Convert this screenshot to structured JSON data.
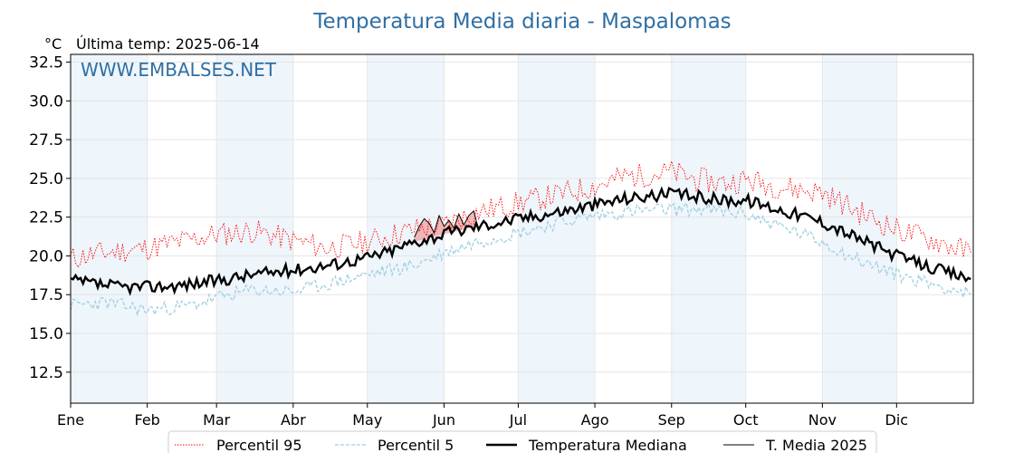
{
  "title": "Temperatura Media diaria - Maspalomas",
  "unit_label": "°C",
  "last_temp_label": "Última temp: 2025-06-14",
  "watermark": "WWW.EMBALSES.NET",
  "colors": {
    "title": "#2f6fa3",
    "p95": "#ff0000",
    "p5": "#9fd0e0",
    "median": "#000000",
    "current": "#000000",
    "fill_above": "#f08080",
    "band": "#eef5fb"
  },
  "chart_data": {
    "type": "line",
    "xlabel": "",
    "ylabel": "°C",
    "ylim": [
      10.5,
      33.0
    ],
    "yticks": [
      12.5,
      15.0,
      17.5,
      20.0,
      22.5,
      25.0,
      27.5,
      30.0,
      32.5
    ],
    "month_ticks": [
      {
        "label": "Ene",
        "day": 1
      },
      {
        "label": "Feb",
        "day": 32
      },
      {
        "label": "Mar",
        "day": 60
      },
      {
        "label": "Abr",
        "day": 91
      },
      {
        "label": "May",
        "day": 121
      },
      {
        "label": "Jun",
        "day": 152
      },
      {
        "label": "Jul",
        "day": 182
      },
      {
        "label": "Ago",
        "day": 213
      },
      {
        "label": "Sep",
        "day": 244
      },
      {
        "label": "Oct",
        "day": 274
      },
      {
        "label": "Nov",
        "day": 305
      },
      {
        "label": "Dic",
        "day": 335
      }
    ],
    "grid": true,
    "legend_position": "bottom-center",
    "series": [
      {
        "name": "Percentil 95",
        "style": "dotted",
        "x": [
          1,
          10,
          20,
          32,
          45,
          60,
          75,
          91,
          105,
          121,
          130,
          140,
          152,
          165,
          182,
          197,
          213,
          225,
          244,
          255,
          265,
          274,
          290,
          305,
          320,
          335,
          350,
          365
        ],
        "y": [
          19.8,
          20.1,
          20.3,
          20.5,
          20.9,
          21.4,
          21.6,
          21.0,
          20.5,
          20.9,
          21.3,
          21.7,
          22.0,
          22.8,
          23.4,
          23.9,
          24.5,
          25.1,
          25.4,
          24.9,
          24.7,
          24.9,
          24.4,
          24.1,
          22.8,
          21.7,
          21.0,
          20.2
        ]
      },
      {
        "name": "Percentil 5",
        "style": "dashed",
        "x": [
          1,
          15,
          32,
          50,
          60,
          75,
          91,
          105,
          121,
          140,
          152,
          165,
          182,
          197,
          213,
          230,
          244,
          255,
          274,
          290,
          305,
          320,
          335,
          350,
          365
        ],
        "y": [
          16.8,
          17.0,
          16.5,
          16.8,
          17.3,
          17.8,
          17.7,
          18.2,
          18.8,
          19.4,
          20.2,
          20.9,
          21.5,
          22.1,
          22.6,
          22.9,
          23.0,
          23.0,
          22.7,
          21.8,
          20.9,
          19.7,
          18.8,
          18.2,
          17.5
        ]
      },
      {
        "name": "Temperatura Mediana",
        "style": "solid-thick",
        "x": [
          1,
          10,
          20,
          32,
          45,
          60,
          75,
          91,
          105,
          121,
          130,
          140,
          152,
          165,
          182,
          197,
          213,
          225,
          244,
          255,
          265,
          274,
          290,
          305,
          320,
          335,
          350,
          365
        ],
        "y": [
          18.4,
          18.2,
          18.0,
          18.0,
          18.1,
          18.4,
          18.8,
          19.1,
          19.4,
          19.9,
          20.3,
          20.9,
          21.4,
          21.9,
          22.4,
          22.8,
          23.3,
          23.7,
          24.0,
          23.8,
          23.6,
          23.6,
          22.9,
          22.2,
          21.1,
          20.0,
          19.2,
          18.5
        ]
      },
      {
        "name": "T. Media 2025",
        "style": "solid-thin",
        "x": [
          140,
          142,
          144,
          146,
          148,
          150,
          152,
          154,
          156,
          158,
          160,
          162,
          164,
          165
        ],
        "y": [
          21.2,
          21.9,
          22.4,
          22.1,
          21.5,
          22.6,
          21.9,
          22.3,
          21.8,
          22.7,
          22.0,
          22.6,
          22.9,
          22.3
        ]
      }
    ]
  },
  "legend": [
    {
      "label": "Percentil 95"
    },
    {
      "label": "Percentil 5"
    },
    {
      "label": "Temperatura Mediana"
    },
    {
      "label": "T. Media 2025"
    }
  ]
}
